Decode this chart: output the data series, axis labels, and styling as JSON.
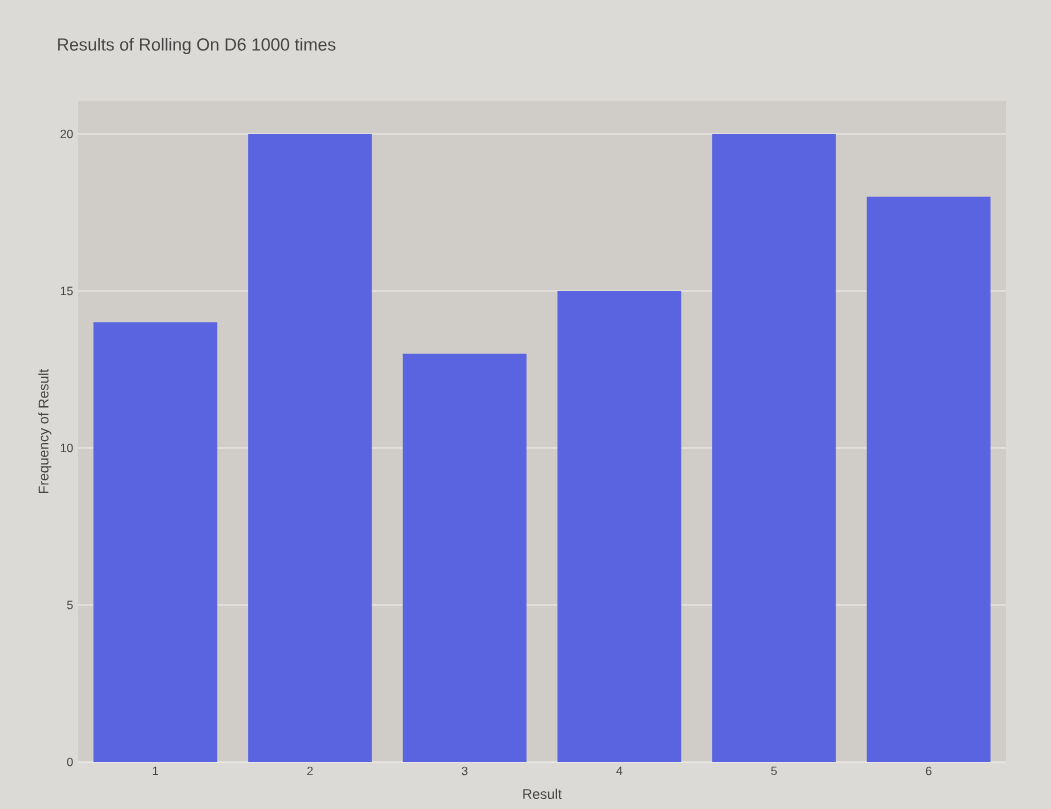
{
  "chart_data": {
    "type": "bar",
    "title": "Results of Rolling On D6 1000 times",
    "xlabel": "Result",
    "ylabel": "Frequency of Result",
    "categories": [
      "1",
      "2",
      "3",
      "4",
      "5",
      "6"
    ],
    "values": [
      14,
      20,
      13,
      15,
      20,
      18
    ],
    "color": "#5a63e0",
    "ylim": [
      0,
      21.05
    ],
    "yticks": [
      0,
      5,
      10,
      15,
      20
    ],
    "grid": "y"
  }
}
